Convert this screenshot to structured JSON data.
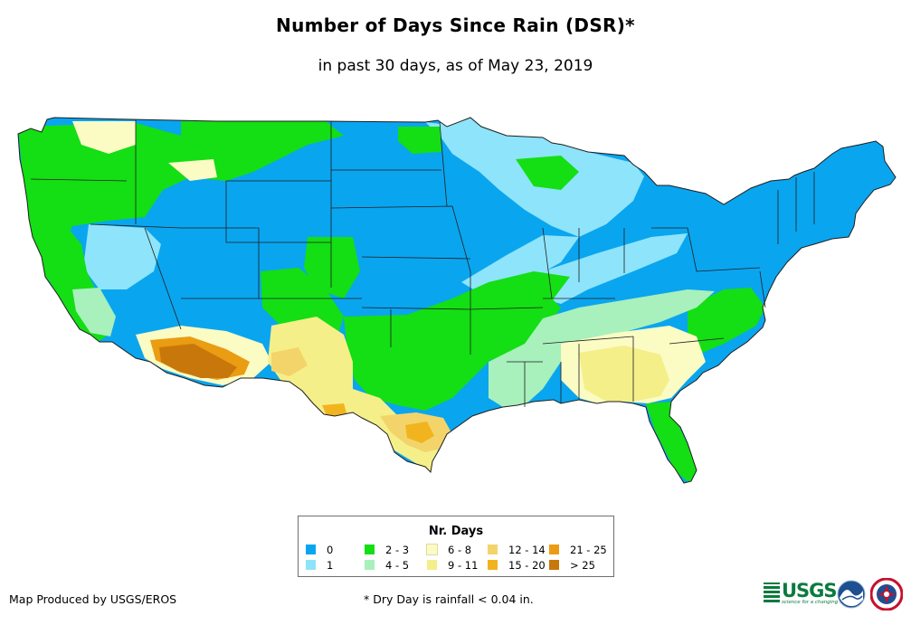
{
  "title": "Number of Days Since Rain (DSR)*",
  "subtitle": "in past 30 days, as of May 23, 2019",
  "legend": {
    "title": "Nr. Days",
    "items": [
      {
        "label": "0",
        "color": "#0aa5ef"
      },
      {
        "label": "1",
        "color": "#8ee4fa"
      },
      {
        "label": "2 - 3",
        "color": "#14de14"
      },
      {
        "label": "4 - 5",
        "color": "#a8f0bc"
      },
      {
        "label": "6 - 8",
        "color": "#fbfbc4"
      },
      {
        "label": "9 - 11",
        "color": "#f5ef8a"
      },
      {
        "label": "12 - 14",
        "color": "#f3d46a"
      },
      {
        "label": "15 - 20",
        "color": "#f2b41e"
      },
      {
        "label": "21 - 25",
        "color": "#ea9c12"
      },
      {
        "label": "> 25",
        "color": "#c8780a"
      }
    ]
  },
  "credit": "Map Produced by USGS/EROS",
  "footnote": "* Dry Day is rainfall < 0.04 in.",
  "logos": {
    "usgs_text": "USGS",
    "usgs_tagline": "science for a changing world",
    "noaa_text": "NOAA"
  },
  "map": {
    "region": "Contiguous United States",
    "boundaries": "state borders",
    "zones": [
      {
        "id": "wet-center",
        "class": "0"
      },
      {
        "id": "pacific-northwest",
        "class": "2 - 3"
      },
      {
        "id": "california",
        "class": "2 - 3"
      },
      {
        "id": "great-basin",
        "class": "0"
      },
      {
        "id": "northern-rockies",
        "class": "2 - 3"
      },
      {
        "id": "southern-plains",
        "class": "2 - 3"
      },
      {
        "id": "ozarks",
        "class": "2 - 3"
      },
      {
        "id": "great-lakes",
        "class": "1"
      },
      {
        "id": "northeast",
        "class": "0"
      },
      {
        "id": "southwest-desert",
        "class": "6 - 8"
      },
      {
        "id": "new-mexico",
        "class": "9 - 11"
      },
      {
        "id": "arizona-south",
        "class": "> 25"
      },
      {
        "id": "west-texas",
        "class": "9 - 11"
      },
      {
        "id": "south-texas",
        "class": "12 - 14"
      },
      {
        "id": "southeast",
        "class": "6 - 8"
      },
      {
        "id": "georgia",
        "class": "9 - 11"
      },
      {
        "id": "mississippi-valley",
        "class": "4 - 5"
      },
      {
        "id": "florida",
        "class": "2 - 3"
      }
    ]
  }
}
